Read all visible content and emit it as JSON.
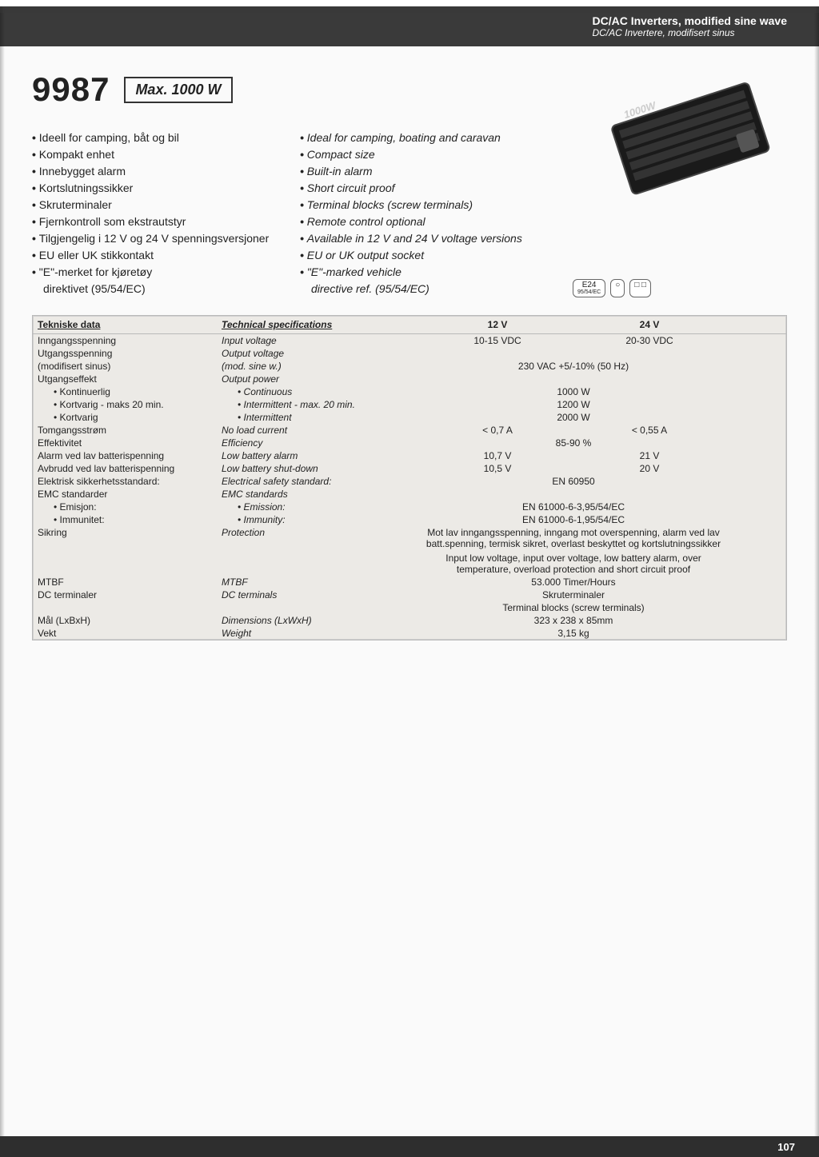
{
  "header": {
    "line1": "DC/AC Inverters, modified sine wave",
    "line2": "DC/AC Invertere, modifisert sinus",
    "bg_color": "#3a3a3a",
    "text_color": "#ffffff"
  },
  "model": {
    "number": "9987",
    "max_label": "Max. 1000 W"
  },
  "features_left": [
    "Ideell for camping, båt og bil",
    "Kompakt enhet",
    "Innebygget alarm",
    "Kortslutningssikker",
    "Skruterminaler",
    "Fjernkontroll som ekstrautstyr",
    "Tilgjengelig i 12 V og 24 V spenningsversjoner",
    "EU eller UK stikkontakt",
    "\"E\"-merket for kjøretøy"
  ],
  "features_left_sub": "direktivet (95/54/EC)",
  "features_right": [
    "Ideal for camping, boating and caravan",
    "Compact size",
    "Built-in alarm",
    "Short circuit proof",
    "Terminal blocks (screw terminals)",
    "Remote control optional",
    "Available in 12 V and 24 V voltage versions",
    "EU or UK output socket",
    "\"E\"-marked vehicle"
  ],
  "features_right_sub": "directive ref. (95/54/EC)",
  "emark": {
    "main": "E24",
    "sub": "95/54/EC"
  },
  "spec_header": {
    "c1": "Tekniske data",
    "c2": "Technical specifications",
    "c3": "12 V",
    "c4": "24 V"
  },
  "spec_rows": [
    {
      "c1": "Inngangsspenning",
      "c2": "Input voltage",
      "c3": "10-15 VDC",
      "c4": "20-30 VDC"
    },
    {
      "c1": "Utgangsspenning",
      "c2": "Output voltage",
      "c34": ""
    },
    {
      "c1": "(modifisert sinus)",
      "c2": "(mod. sine w.)",
      "c34": "230 VAC +5/-10% (50 Hz)"
    },
    {
      "c1": "Utgangseffekt",
      "c2": "Output power",
      "c34": ""
    },
    {
      "c1": "• Kontinuerlig",
      "c2": "• Continuous",
      "c34": "1000 W",
      "indent": true
    },
    {
      "c1": "• Kortvarig - maks 20 min.",
      "c2": "• Intermittent - max. 20 min.",
      "c34": "1200 W",
      "indent": true
    },
    {
      "c1": "• Kortvarig",
      "c2": "• Intermittent",
      "c34": "2000 W",
      "indent": true
    },
    {
      "c1": "Tomgangsstrøm",
      "c2": "No load current",
      "c3": "< 0,7 A",
      "c4": "< 0,55 A"
    },
    {
      "c1": "Effektivitet",
      "c2": "Efficiency",
      "c34": "85-90 %"
    },
    {
      "c1": "Alarm ved lav batterispenning",
      "c2": "Low battery alarm",
      "c3": "10,7 V",
      "c4": "21 V"
    },
    {
      "c1": "Avbrudd ved lav batterispenning",
      "c2": "Low battery shut-down",
      "c3": "10,5 V",
      "c4": "20 V"
    },
    {
      "c1": "Elektrisk sikkerhetsstandard:",
      "c2": "Electrical safety standard:",
      "c34": "EN 60950"
    },
    {
      "c1": "EMC standarder",
      "c2": "EMC standards",
      "c34": ""
    },
    {
      "c1": "• Emisjon:",
      "c2": "• Emission:",
      "c34": "EN 61000-6-3,95/54/EC",
      "indent": true
    },
    {
      "c1": "• Immunitet:",
      "c2": "• Immunity:",
      "c34": "EN 61000-6-1,95/54/EC",
      "indent": true
    },
    {
      "c1": "Sikring",
      "c2": "Protection",
      "c34": "Mot lav inngangsspenning, inngang mot overspenning, alarm ved lav batt.spenning, termisk sikret, overlast beskyttet og kortslutningssikker"
    },
    {
      "c1": "",
      "c2": "",
      "c34": ""
    },
    {
      "c1": "",
      "c2": "",
      "c34": "Input low voltage, input over voltage, low battery alarm, over temperature, overload protection and short circuit proof"
    },
    {
      "c1": "MTBF",
      "c2": "MTBF",
      "c34": "53.000 Timer/Hours"
    },
    {
      "c1": "DC terminaler",
      "c2": "DC terminals",
      "c34": "Skruterminaler"
    },
    {
      "c1": "",
      "c2": "",
      "c34": "Terminal blocks (screw terminals)"
    },
    {
      "c1": "Mål (LxBxH)",
      "c2": "Dimensions (LxWxH)",
      "c34": "323 x 238 x 85mm"
    },
    {
      "c1": "Vekt",
      "c2": "Weight",
      "c34": "3,15 kg"
    }
  ],
  "spec_box": {
    "bg_color": "#eceae6",
    "border_color": "#b9b9b9"
  },
  "product_image": {
    "name": "inverter-photo",
    "body_color": "#1a1a1a",
    "label_text": "1000W"
  },
  "footer": {
    "page_number": "107",
    "bg_color": "#2e2e2e"
  }
}
